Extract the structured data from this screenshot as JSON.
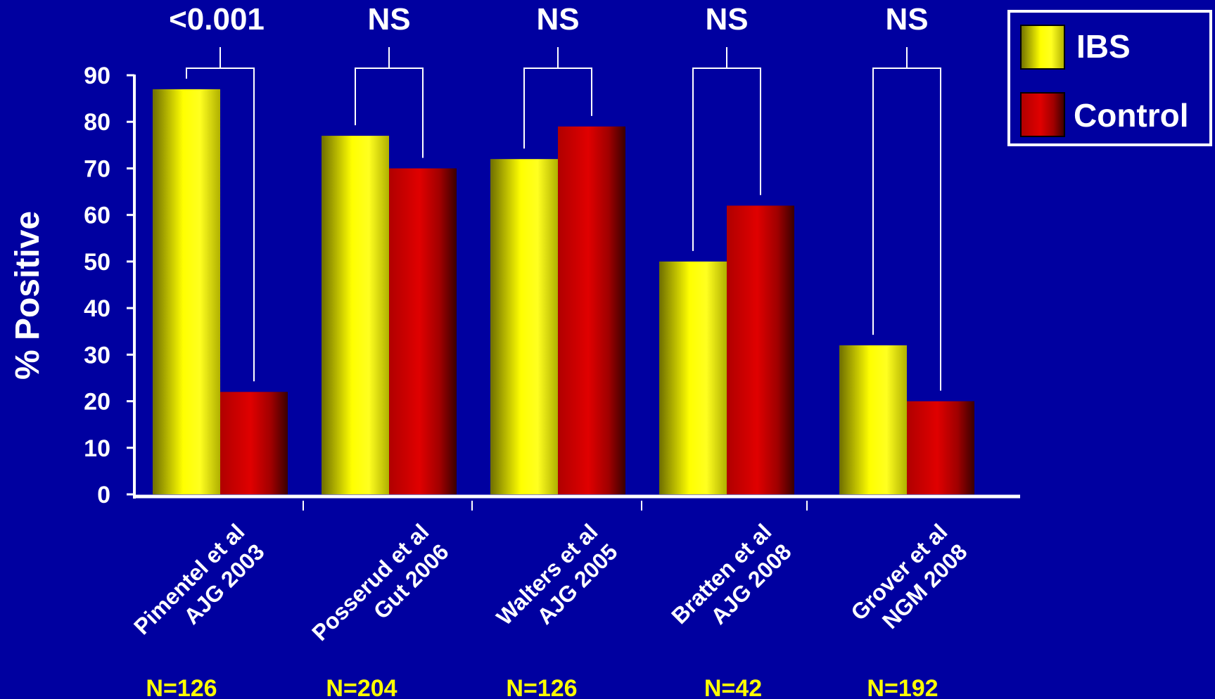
{
  "chart_data": {
    "type": "bar",
    "title": "",
    "xlabel": "",
    "ylabel": "% Positive",
    "ylim": [
      0,
      90
    ],
    "yticks": [
      0,
      10,
      20,
      30,
      40,
      50,
      60,
      70,
      80,
      90
    ],
    "grid": false,
    "legend_position": "top-right",
    "categories": [
      [
        "Pimentel et al",
        "AJG 2003"
      ],
      [
        "Posserud et al",
        "Gut 2006"
      ],
      [
        "Walters et al",
        "AJG 2005"
      ],
      [
        "Bratten et al",
        "AJG 2008"
      ],
      [
        "Grover et al",
        "NGM 2008"
      ]
    ],
    "series": [
      {
        "name": "IBS",
        "color": "#ffff00",
        "values": [
          87,
          77,
          72,
          50,
          32
        ]
      },
      {
        "name": "Control",
        "color": "#e00000",
        "values": [
          22,
          70,
          79,
          62,
          20
        ]
      }
    ],
    "significance": [
      "<0.001",
      "NS",
      "NS",
      "NS",
      "NS"
    ],
    "sample_sizes": [
      "N=126",
      "N=204",
      "N=126",
      "N=42",
      "N=192"
    ]
  }
}
